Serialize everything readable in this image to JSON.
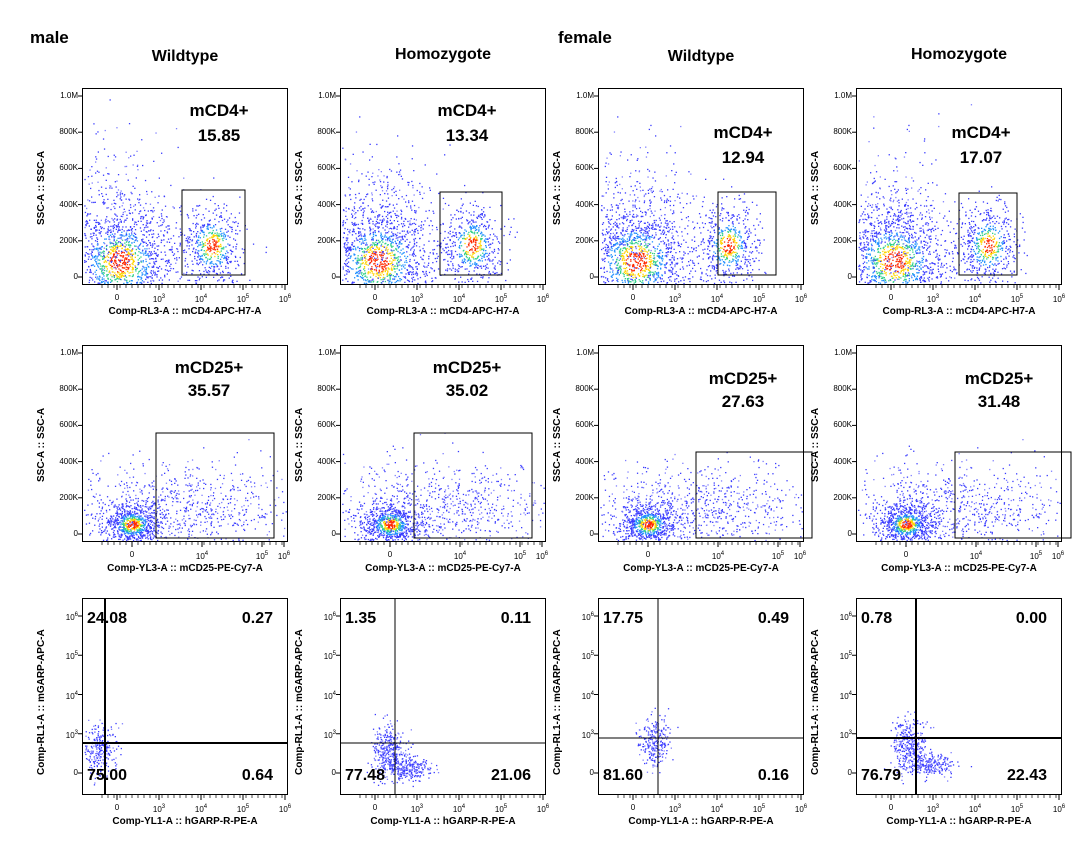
{
  "sex_labels": {
    "male": "male",
    "female": "female"
  },
  "column_titles": [
    "Wildtype",
    "Homozygote",
    "Wildtype",
    "Homozygote"
  ],
  "chart_data": {
    "type": "scatter",
    "description_scale": "biexponential flow cytometry",
    "rows": [
      {
        "row": "mCD4",
        "xlabel": "Comp-RL3-A :: mCD4-APC-H7-A",
        "ylabel": "SSC-A :: SSC-A",
        "yticks": [
          "0",
          "200K",
          "400K",
          "600K",
          "800K",
          "1.0M"
        ],
        "xticks": [
          "0",
          "10^3",
          "10^4",
          "10^5",
          "10^6"
        ],
        "gate_label": "mCD4+",
        "values": [
          "15.85",
          "13.34",
          "12.94",
          "17.07"
        ]
      },
      {
        "row": "mCD25",
        "xlabel": "Comp-YL3-A :: mCD25-PE-Cy7-A",
        "ylabel": "SSC-A :: SSC-A",
        "yticks": [
          "0",
          "200K",
          "400K",
          "600K",
          "800K",
          "1.0M"
        ],
        "xticks": [
          "0",
          "10^4",
          "10^5",
          "10^6"
        ],
        "gate_label": "mCD25+",
        "values": [
          "35.57",
          "35.02",
          "27.63",
          "31.48"
        ]
      },
      {
        "row": "GARP",
        "xlabel": "Comp-YL1-A :: hGARP-R-PE-A",
        "ylabel": "Comp-RL1-A :: mGARP-APC-A",
        "yticks": [
          "0",
          "10^3",
          "10^4",
          "10^5",
          "10^6"
        ],
        "xticks": [
          "0",
          "10^3",
          "10^4",
          "10^5",
          "10^6"
        ],
        "quadrants": [
          {
            "UL": "24.08",
            "UR": "0.27",
            "LL": "75.00",
            "LR": "0.64"
          },
          {
            "UL": "1.35",
            "UR": "0.11",
            "LL": "77.48",
            "LR": "21.06"
          },
          {
            "UL": "17.75",
            "UR": "0.49",
            "LL": "81.60",
            "LR": "0.16"
          },
          {
            "UL": "0.78",
            "UR": "0.00",
            "LL": "76.79",
            "LR": "22.43"
          }
        ]
      }
    ]
  }
}
